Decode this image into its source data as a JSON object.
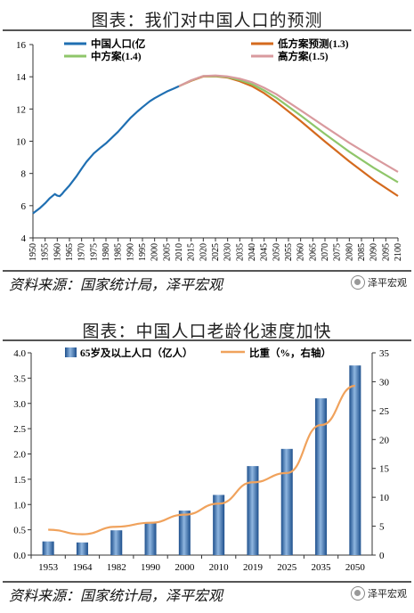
{
  "chart_data": [
    {
      "type": "line",
      "title": "图表：我们对中国人口的预测",
      "xlabel": "",
      "ylabel": "",
      "xlim": [
        1950,
        2100
      ],
      "ylim": [
        4,
        16
      ],
      "y_ticks": [
        4,
        6,
        8,
        10,
        12,
        14,
        16
      ],
      "x_ticks": [
        1950,
        1955,
        1960,
        1965,
        1970,
        1975,
        1980,
        1985,
        1990,
        1995,
        2000,
        2005,
        2010,
        2015,
        2020,
        2025,
        2030,
        2035,
        2040,
        2045,
        2050,
        2055,
        2060,
        2065,
        2070,
        2075,
        2080,
        2085,
        2090,
        2095,
        2100
      ],
      "legend_position": "top",
      "series": [
        {
          "name": "中国人口(亿",
          "color": "#1f6fb2",
          "x": [
            1950,
            1953,
            1955,
            1957,
            1959,
            1960,
            1961,
            1962,
            1963,
            1965,
            1968,
            1970,
            1972,
            1975,
            1978,
            1980,
            1983,
            1985,
            1988,
            1990,
            1993,
            1995,
            1998,
            2000,
            2003,
            2005,
            2008,
            2010
          ],
          "y": [
            5.52,
            5.87,
            6.15,
            6.47,
            6.72,
            6.62,
            6.59,
            6.73,
            6.92,
            7.25,
            7.85,
            8.3,
            8.72,
            9.24,
            9.63,
            9.87,
            10.3,
            10.59,
            11.1,
            11.43,
            11.85,
            12.11,
            12.48,
            12.67,
            12.92,
            13.08,
            13.28,
            13.41
          ]
        },
        {
          "name": "低方案预测(1.3)",
          "color": "#d46a1e",
          "x": [
            2010,
            2015,
            2020,
            2025,
            2030,
            2035,
            2040,
            2045,
            2050,
            2060,
            2070,
            2080,
            2090,
            2100
          ],
          "y": [
            13.41,
            13.75,
            14.02,
            14.03,
            13.95,
            13.72,
            13.42,
            12.98,
            12.45,
            11.25,
            9.98,
            8.75,
            7.6,
            6.6
          ]
        },
        {
          "name": "中方案(1.4)",
          "color": "#8fc66a",
          "x": [
            2010,
            2015,
            2020,
            2025,
            2030,
            2035,
            2040,
            2045,
            2050,
            2060,
            2070,
            2080,
            2090,
            2100
          ],
          "y": [
            13.41,
            13.77,
            14.04,
            14.05,
            13.98,
            13.8,
            13.54,
            13.15,
            12.7,
            11.6,
            10.45,
            9.35,
            8.35,
            7.45
          ]
        },
        {
          "name": "高方案(1.5)",
          "color": "#d99a9e",
          "x": [
            2010,
            2015,
            2020,
            2025,
            2030,
            2035,
            2040,
            2045,
            2050,
            2060,
            2070,
            2080,
            2090,
            2100
          ],
          "y": [
            13.41,
            13.78,
            14.05,
            14.08,
            14.02,
            13.88,
            13.66,
            13.32,
            12.92,
            11.92,
            10.9,
            9.9,
            8.98,
            8.1
          ]
        }
      ]
    },
    {
      "type": "bar",
      "title": "图表：中国人口老龄化速度加快",
      "xlabel": "",
      "ylabel": "",
      "categories": [
        "1953",
        "1964",
        "1982",
        "1990",
        "2000",
        "2010",
        "2019",
        "2025",
        "2035",
        "2050"
      ],
      "ylim": [
        0,
        4.0
      ],
      "y_ticks": [
        0.0,
        0.5,
        1.0,
        1.5,
        2.0,
        2.5,
        3.0,
        3.5,
        4.0
      ],
      "y2lim": [
        0,
        35
      ],
      "y2_ticks": [
        0,
        5,
        10,
        15,
        20,
        25,
        30,
        35
      ],
      "legend_position": "top",
      "series": [
        {
          "name": "65岁及以上人口（亿人）",
          "type": "bar",
          "axis": "left",
          "color": "#2e6fb5",
          "values": [
            0.27,
            0.25,
            0.49,
            0.63,
            0.88,
            1.19,
            1.76,
            2.1,
            3.1,
            3.75
          ]
        },
        {
          "name": "比重（%，右轴）",
          "type": "line",
          "axis": "right",
          "color": "#f0a25c",
          "values": [
            4.4,
            3.6,
            4.9,
            5.6,
            7.0,
            8.9,
            12.6,
            14.2,
            22.5,
            29.3
          ]
        }
      ]
    }
  ],
  "source": {
    "text": "资料来源：国家统计局，泽平宏观",
    "logo": "泽平宏观"
  }
}
